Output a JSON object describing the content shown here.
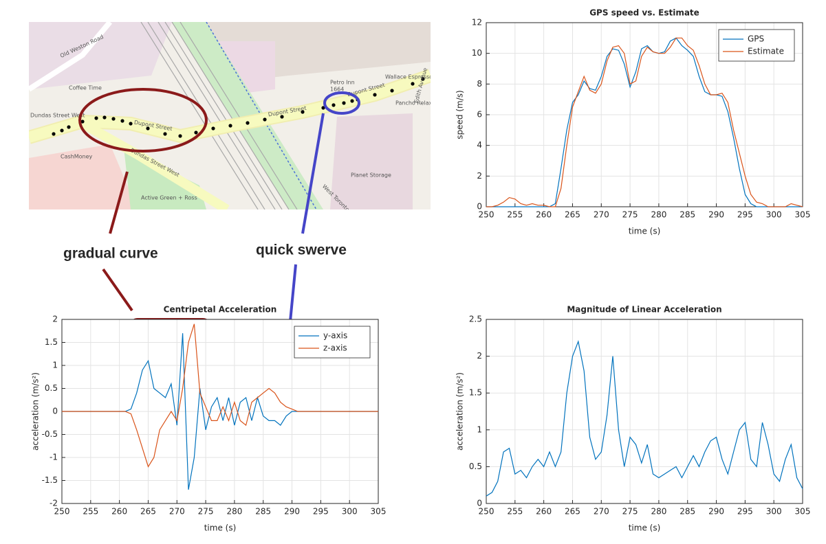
{
  "map": {
    "labels": [
      "Old Weston Road",
      "Coffee Time",
      "Dundas Street West",
      "CashMoney",
      "Dupont Street",
      "Dupont Street",
      "Dupont Street",
      "Dundas Street West",
      "Active Green + Ross",
      "Petro Inn",
      "1664",
      "Wallace Espresso",
      "Pancho Relaxe to Go",
      "Planet Storage",
      "West Toronto Railpath",
      "Edith Avenue"
    ]
  },
  "annotations": {
    "left": "gradual curve",
    "right": "quick swerve"
  },
  "chart_data": [
    {
      "type": "line",
      "title": "GPS speed vs. Estimate",
      "xlabel": "time (s)",
      "ylabel": "speed (m/s)",
      "x": [
        250,
        251,
        252,
        253,
        254,
        255,
        256,
        257,
        258,
        259,
        260,
        261,
        262,
        263,
        264,
        265,
        266,
        267,
        268,
        269,
        270,
        271,
        272,
        273,
        274,
        275,
        276,
        277,
        278,
        279,
        280,
        281,
        282,
        283,
        284,
        285,
        286,
        287,
        288,
        289,
        290,
        291,
        292,
        293,
        294,
        295,
        296,
        297,
        298,
        299,
        300,
        301,
        302,
        303,
        304,
        305
      ],
      "series": [
        {
          "name": "GPS",
          "color": "#0072bd",
          "values": [
            0,
            0,
            0,
            0,
            0,
            0,
            0,
            0,
            0,
            0,
            0,
            0,
            0.2,
            2.5,
            5,
            6.8,
            7.3,
            8.2,
            7.7,
            7.6,
            8.5,
            9.8,
            10.3,
            10.2,
            9.3,
            7.8,
            8.8,
            10.3,
            10.5,
            10.1,
            10,
            10.1,
            10.8,
            11,
            10.5,
            10.2,
            9.8,
            8.5,
            7.5,
            7.3,
            7.3,
            7.2,
            6.2,
            4.5,
            2.5,
            0.8,
            0.2,
            0,
            0,
            0,
            0,
            0,
            0,
            0,
            0,
            0
          ]
        },
        {
          "name": "Estimate",
          "color": "#d95319",
          "values": [
            0,
            0,
            0.1,
            0.3,
            0.6,
            0.5,
            0.2,
            0.1,
            0.2,
            0.1,
            0.1,
            0,
            0,
            1.2,
            4,
            6.5,
            7.5,
            8.5,
            7.6,
            7.4,
            8,
            9.5,
            10.4,
            10.5,
            10,
            8,
            8.2,
            9.8,
            10.4,
            10.1,
            10,
            10,
            10.4,
            11,
            11,
            10.5,
            10.2,
            9.2,
            8,
            7.3,
            7.3,
            7.4,
            6.8,
            5,
            3.5,
            2,
            0.8,
            0.3,
            0.2,
            0,
            0,
            0,
            0,
            0.2,
            0.1,
            0
          ]
        }
      ],
      "xlim": [
        250,
        305
      ],
      "xticks": [
        250,
        255,
        260,
        265,
        270,
        275,
        280,
        285,
        290,
        295,
        300,
        305
      ],
      "ylim": [
        0,
        12
      ],
      "yticks": [
        0,
        2,
        4,
        6,
        8,
        10,
        12
      ],
      "grid": true,
      "legend": "upper right"
    },
    {
      "type": "line",
      "title": "Centripetal Acceleration",
      "xlabel": "time (s)",
      "ylabel": "acceleration (m/s²)",
      "x": [
        250,
        251,
        252,
        253,
        254,
        255,
        256,
        257,
        258,
        259,
        260,
        261,
        262,
        263,
        264,
        265,
        266,
        267,
        268,
        269,
        270,
        271,
        272,
        273,
        274,
        275,
        276,
        277,
        278,
        279,
        280,
        281,
        282,
        283,
        284,
        285,
        286,
        287,
        288,
        289,
        290,
        291,
        292,
        293,
        294,
        295,
        296,
        297,
        298,
        299,
        300,
        301,
        302,
        303,
        304,
        305
      ],
      "series": [
        {
          "name": "y-axis",
          "color": "#0072bd",
          "values": [
            0,
            0,
            0,
            0,
            0,
            0,
            0,
            0,
            0,
            0,
            0,
            0,
            0.05,
            0.4,
            0.9,
            1.1,
            0.5,
            0.4,
            0.3,
            0.6,
            -0.3,
            1.7,
            -1.7,
            -1.0,
            0.5,
            -0.4,
            0.1,
            0.3,
            -0.2,
            0.3,
            -0.3,
            0.2,
            0.3,
            -0.2,
            0.3,
            -0.1,
            -0.2,
            -0.2,
            -0.3,
            -0.1,
            0,
            0,
            0,
            0,
            0,
            0,
            0,
            0,
            0,
            0,
            0,
            0,
            0,
            0,
            0,
            0
          ]
        },
        {
          "name": "z-axis",
          "color": "#d95319",
          "values": [
            0,
            0,
            0,
            0,
            0,
            0,
            0,
            0,
            0,
            0,
            0,
            0,
            -0.05,
            -0.4,
            -0.8,
            -1.2,
            -1.0,
            -0.4,
            -0.2,
            0,
            -0.2,
            0.5,
            1.5,
            1.9,
            0.4,
            0.1,
            -0.2,
            -0.2,
            0.1,
            -0.2,
            0.2,
            -0.2,
            -0.3,
            0.2,
            0.3,
            0.4,
            0.5,
            0.4,
            0.2,
            0.1,
            0.05,
            0,
            0,
            0,
            0,
            0,
            0,
            0,
            0,
            0,
            0,
            0,
            0,
            0,
            0,
            0
          ]
        }
      ],
      "xlim": [
        250,
        305
      ],
      "xticks": [
        250,
        255,
        260,
        265,
        270,
        275,
        280,
        285,
        290,
        295,
        300,
        305
      ],
      "ylim": [
        -2,
        2
      ],
      "yticks": [
        -2,
        -1.5,
        -1,
        -0.5,
        0,
        0.5,
        1,
        1.5,
        2
      ],
      "grid": true,
      "legend": "upper right"
    },
    {
      "type": "line",
      "title": "Magnitude of Linear Acceleration",
      "xlabel": "time (s)",
      "ylabel": "acceleration (m/s²)",
      "x": [
        250,
        251,
        252,
        253,
        254,
        255,
        256,
        257,
        258,
        259,
        260,
        261,
        262,
        263,
        264,
        265,
        266,
        267,
        268,
        269,
        270,
        271,
        272,
        273,
        274,
        275,
        276,
        277,
        278,
        279,
        280,
        281,
        282,
        283,
        284,
        285,
        286,
        287,
        288,
        289,
        290,
        291,
        292,
        293,
        294,
        295,
        296,
        297,
        298,
        299,
        300,
        301,
        302,
        303,
        304,
        305
      ],
      "series": [
        {
          "color": "#0072bd",
          "values": [
            0.1,
            0.15,
            0.3,
            0.7,
            0.75,
            0.4,
            0.45,
            0.35,
            0.5,
            0.6,
            0.5,
            0.7,
            0.5,
            0.7,
            1.5,
            2.0,
            2.2,
            1.8,
            0.9,
            0.6,
            0.7,
            1.2,
            2.0,
            1.0,
            0.5,
            0.9,
            0.8,
            0.55,
            0.8,
            0.4,
            0.35,
            0.4,
            0.45,
            0.5,
            0.35,
            0.5,
            0.65,
            0.5,
            0.7,
            0.85,
            0.9,
            0.6,
            0.4,
            0.7,
            1.0,
            1.1,
            0.6,
            0.5,
            1.1,
            0.8,
            0.4,
            0.3,
            0.6,
            0.8,
            0.35,
            0.2
          ]
        }
      ],
      "xlim": [
        250,
        305
      ],
      "xticks": [
        250,
        255,
        260,
        265,
        270,
        275,
        280,
        285,
        290,
        295,
        300,
        305
      ],
      "ylim": [
        0,
        2.5
      ],
      "yticks": [
        0,
        0.5,
        1,
        1.5,
        2,
        2.5
      ],
      "grid": true
    }
  ]
}
